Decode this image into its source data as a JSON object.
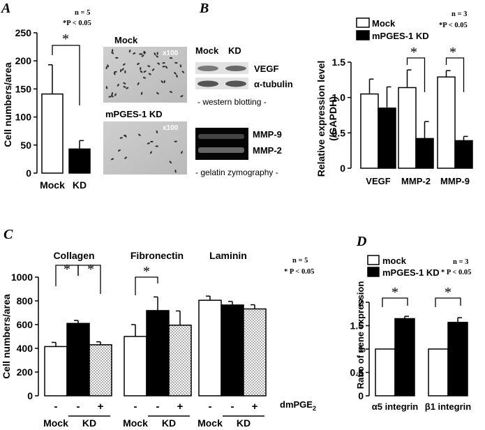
{
  "colors": {
    "mock": "#ffffff",
    "kd": "#000000",
    "dm": "dotted",
    "stroke": "#000000"
  },
  "panelA": {
    "letter": "A",
    "stats": {
      "n": "n = 5",
      "p": "*P < 0.05"
    },
    "star": "*",
    "photo_labels": {
      "mock": "Mock",
      "kd": "mPGES-1 KD",
      "mag1": "x100",
      "mag2": "x100"
    }
  },
  "panelB": {
    "letter": "B",
    "stats": {
      "n": "n = 3",
      "p": "*P < 0.05"
    },
    "star": "*",
    "blot": {
      "col_mock": "Mock",
      "col_kd": "KD",
      "band1": "VEGF",
      "band2": "α-tubulin",
      "caption1": "- western blotting -",
      "band3": "MMP-9",
      "band4": "MMP-2",
      "caption2": "- gelatin zymography -"
    }
  },
  "panelC": {
    "letter": "C",
    "stats": {
      "n": "n = 5",
      "p": "* P < 0.05"
    },
    "star": "*",
    "group_titles": [
      "Collagen",
      "Fibronectin",
      "Laminin"
    ],
    "dm_signs": [
      "-",
      "-",
      "+",
      "-",
      "-",
      "+",
      "-",
      "-",
      "+"
    ],
    "dm_label": "dmPGE",
    "dm_sub": "2",
    "x_group_labels": [
      "Mock",
      "KD",
      "Mock",
      "KD",
      "Mock",
      "KD"
    ]
  },
  "panelD": {
    "letter": "D",
    "stats": {
      "n": "n = 3",
      "p": "* P < 0.05"
    },
    "star": "*"
  },
  "chart_data": [
    {
      "id": "A",
      "type": "bar",
      "categories": [
        "Mock",
        "KD"
      ],
      "values": [
        141,
        43
      ],
      "errors": [
        52,
        15
      ],
      "ylabel": "Cell numbers/area",
      "ylim": [
        0,
        250
      ],
      "yticks": [
        0,
        50,
        100,
        150,
        200,
        250
      ],
      "significance": [
        [
          0,
          1
        ]
      ]
    },
    {
      "id": "B",
      "type": "bar",
      "categories": [
        "VEGF",
        "MMP-2",
        "MMP-9"
      ],
      "series": [
        {
          "name": "Mock",
          "values": [
            1.05,
            1.14,
            1.29
          ],
          "errors": [
            0.21,
            0.25,
            0.09
          ]
        },
        {
          "name": "mPGES-1 KD",
          "values": [
            0.85,
            0.42,
            0.39
          ],
          "errors": [
            0.3,
            0.24,
            0.06
          ]
        }
      ],
      "ylabel": "Relative expression level (/GAPDH)",
      "ylim": [
        0,
        1.5
      ],
      "yticks": [
        "0",
        "0.5",
        "1.0",
        "1.5"
      ],
      "significance_categories": [
        1,
        2
      ],
      "legend": "top-left"
    },
    {
      "id": "C",
      "type": "bar",
      "groups": [
        "Collagen",
        "Fibronectin",
        "Laminin"
      ],
      "conditions": [
        "Mock",
        "KD",
        "KD + dmPGE2"
      ],
      "values": [
        [
          415,
          610,
          430
        ],
        [
          500,
          718,
          595
        ],
        [
          805,
          765,
          732
        ]
      ],
      "errors": [
        [
          35,
          25,
          25
        ],
        [
          100,
          115,
          120
        ],
        [
          35,
          30,
          35
        ]
      ],
      "ylabel": "Cell numbers/area",
      "ylim": [
        0,
        1000
      ],
      "yticks": [
        0,
        200,
        400,
        600,
        800,
        1000
      ],
      "significance": "Collagen: Mock vs KD, KD vs KD+dmPGE2; Fibronectin: Mock vs KD"
    },
    {
      "id": "D",
      "type": "bar",
      "categories": [
        "α5 integrin",
        "β1 integrin"
      ],
      "series": [
        {
          "name": "mock",
          "values": [
            1.0,
            1.0
          ],
          "errors": [
            0,
            0
          ]
        },
        {
          "name": "mPGES-1 KD",
          "values": [
            1.65,
            1.57
          ],
          "errors": [
            0.05,
            0.1
          ]
        }
      ],
      "ylabel": "Ratio of gene expression",
      "ylim": [
        0,
        2
      ],
      "yticks": [
        "0",
        "0.5",
        "1",
        "1.5",
        "2"
      ],
      "legend": "top-left"
    }
  ]
}
